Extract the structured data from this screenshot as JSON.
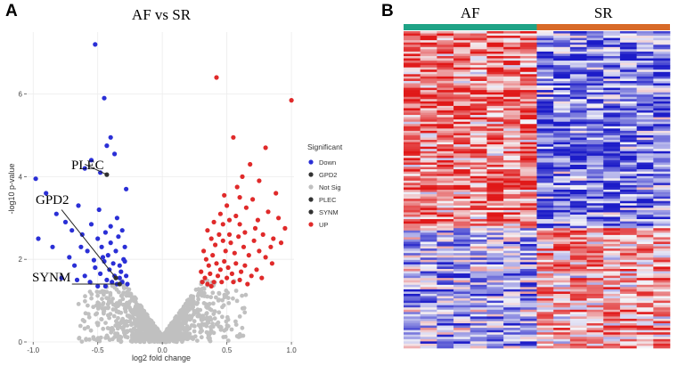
{
  "panel_a": {
    "letter": "A",
    "chart_data": {
      "type": "scatter",
      "title": "AF vs SR",
      "xlabel": "log2 fold change",
      "ylabel": "-log10 p-value",
      "xlim": [
        -1.05,
        1.02
      ],
      "ylim": [
        0,
        7.5
      ],
      "x_ticks": [
        -1.0,
        -0.5,
        0.0,
        0.5,
        1.0
      ],
      "x_tick_labels": [
        "-1.0",
        "-0.5",
        "0.0",
        "0.5",
        "1.0"
      ],
      "y_ticks": [
        0,
        2,
        4,
        6
      ],
      "y_tick_labels": [
        "0",
        "2",
        "4",
        "6"
      ],
      "grid": true,
      "legend": {
        "title": "Significant",
        "placement": "right",
        "entries": [
          {
            "label": "Down",
            "color": "#2a2fd6"
          },
          {
            "label": "GPD2",
            "color": "#333333"
          },
          {
            "label": "Not Sig",
            "color": "#c0c0c0"
          },
          {
            "label": "PLEC",
            "color": "#333333"
          },
          {
            "label": "SYNM",
            "color": "#333333"
          },
          {
            "label": "UP",
            "color": "#e02a2a"
          }
        ]
      },
      "series": [
        {
          "name": "Down",
          "color": "#2a2fd6",
          "points": [
            [
              -0.52,
              7.2
            ],
            [
              -0.45,
              5.9
            ],
            [
              -0.4,
              4.95
            ],
            [
              -0.43,
              4.75
            ],
            [
              -0.37,
              4.55
            ],
            [
              -0.55,
              4.4
            ],
            [
              -0.6,
              4.2
            ],
            [
              -0.48,
              4.1
            ],
            [
              -0.28,
              3.7
            ],
            [
              -0.98,
              3.95
            ],
            [
              -0.9,
              3.6
            ],
            [
              -0.82,
              3.1
            ],
            [
              -0.75,
              2.9
            ],
            [
              -0.65,
              3.3
            ],
            [
              -0.7,
              2.7
            ],
            [
              -0.96,
              2.5
            ],
            [
              -0.85,
              2.3
            ],
            [
              -0.72,
              2.05
            ],
            [
              -0.62,
              2.6
            ],
            [
              -0.58,
              2.2
            ],
            [
              -0.55,
              2.85
            ],
            [
              -0.5,
              2.5
            ],
            [
              -0.47,
              2.3
            ],
            [
              -0.44,
              2.65
            ],
            [
              -0.42,
              2.1
            ],
            [
              -0.4,
              2.4
            ],
            [
              -0.38,
              1.9
            ],
            [
              -0.36,
              2.2
            ],
            [
              -0.34,
              2.55
            ],
            [
              -0.32,
              1.7
            ],
            [
              -0.3,
              2.0
            ],
            [
              -0.29,
              2.3
            ],
            [
              -0.6,
              1.6
            ],
            [
              -0.52,
              1.8
            ],
            [
              -0.48,
              1.65
            ],
            [
              -0.45,
              1.95
            ],
            [
              -0.43,
              1.5
            ],
            [
              -0.41,
              1.75
            ],
            [
              -0.39,
              1.45
            ],
            [
              -0.37,
              1.6
            ],
            [
              -0.35,
              1.4
            ],
            [
              -0.33,
              1.55
            ],
            [
              -0.31,
              1.45
            ],
            [
              -0.28,
              1.6
            ],
            [
              -0.27,
              1.4
            ],
            [
              -0.66,
              1.5
            ],
            [
              -0.56,
              1.45
            ],
            [
              -0.5,
              1.35
            ],
            [
              -0.46,
              2.05
            ],
            [
              -0.4,
              2.8
            ],
            [
              -0.35,
              3.0
            ],
            [
              -0.49,
              3.2
            ],
            [
              -0.31,
              2.7
            ],
            [
              -0.68,
              1.85
            ],
            [
              -0.78,
              1.55
            ],
            [
              -0.44,
              1.35
            ],
            [
              -0.33,
              1.85
            ],
            [
              -0.29,
              1.95
            ],
            [
              -0.53,
              1.98
            ],
            [
              -0.63,
              2.3
            ]
          ]
        },
        {
          "name": "UP",
          "color": "#e02a2a",
          "points": [
            [
              0.42,
              6.4
            ],
            [
              1.0,
              5.85
            ],
            [
              0.55,
              4.95
            ],
            [
              0.8,
              4.7
            ],
            [
              0.68,
              4.3
            ],
            [
              0.62,
              4.0
            ],
            [
              0.75,
              3.9
            ],
            [
              0.58,
              3.75
            ],
            [
              0.88,
              3.6
            ],
            [
              0.7,
              3.45
            ],
            [
              0.65,
              3.25
            ],
            [
              0.82,
              3.15
            ],
            [
              0.5,
              3.3
            ],
            [
              0.45,
              3.1
            ],
            [
              0.52,
              2.95
            ],
            [
              0.6,
              2.85
            ],
            [
              0.72,
              2.75
            ],
            [
              0.78,
              2.6
            ],
            [
              0.86,
              2.5
            ],
            [
              0.92,
              2.4
            ],
            [
              0.35,
              2.7
            ],
            [
              0.38,
              2.5
            ],
            [
              0.41,
              2.35
            ],
            [
              0.44,
              2.6
            ],
            [
              0.47,
              2.45
            ],
            [
              0.49,
              2.2
            ],
            [
              0.53,
              2.4
            ],
            [
              0.56,
              2.15
            ],
            [
              0.59,
              2.55
            ],
            [
              0.63,
              2.3
            ],
            [
              0.67,
              2.1
            ],
            [
              0.71,
              2.45
            ],
            [
              0.75,
              2.2
            ],
            [
              0.8,
              2.05
            ],
            [
              0.84,
              2.3
            ],
            [
              0.32,
              2.2
            ],
            [
              0.34,
              2.0
            ],
            [
              0.36,
              1.85
            ],
            [
              0.39,
              2.1
            ],
            [
              0.42,
              1.9
            ],
            [
              0.45,
              1.75
            ],
            [
              0.48,
              1.95
            ],
            [
              0.51,
              1.8
            ],
            [
              0.54,
              1.65
            ],
            [
              0.57,
              1.9
            ],
            [
              0.61,
              1.7
            ],
            [
              0.64,
              1.85
            ],
            [
              0.69,
              1.6
            ],
            [
              0.73,
              1.75
            ],
            [
              0.77,
              1.55
            ],
            [
              0.3,
              1.7
            ],
            [
              0.33,
              1.55
            ],
            [
              0.37,
              1.65
            ],
            [
              0.4,
              1.45
            ],
            [
              0.43,
              1.6
            ],
            [
              0.46,
              1.45
            ],
            [
              0.5,
              1.55
            ],
            [
              0.55,
              1.45
            ],
            [
              0.6,
              1.5
            ],
            [
              0.66,
              1.4
            ],
            [
              0.31,
              1.45
            ],
            [
              0.35,
              1.4
            ],
            [
              0.38,
              1.35
            ],
            [
              0.95,
              2.75
            ],
            [
              0.9,
              3.0
            ],
            [
              0.6,
              3.5
            ],
            [
              0.47,
              2.85
            ],
            [
              0.52,
              2.6
            ],
            [
              0.4,
              2.9
            ],
            [
              0.85,
              1.9
            ],
            [
              0.74,
              2.95
            ],
            [
              0.64,
              2.65
            ],
            [
              0.57,
              3.05
            ],
            [
              0.48,
              3.55
            ]
          ]
        },
        {
          "name": "GPD2",
          "color": "#333333",
          "points": [
            [
              -0.36,
              1.55
            ]
          ]
        },
        {
          "name": "PLEC",
          "color": "#333333",
          "points": [
            [
              -0.43,
              4.05
            ]
          ]
        },
        {
          "name": "SYNM",
          "color": "#333333",
          "points": [
            [
              -0.33,
              1.4
            ]
          ]
        }
      ],
      "annotations": [
        {
          "label": "PLEC",
          "gene_x": -0.43,
          "gene_y": 4.05
        },
        {
          "label": "GPD2",
          "gene_x": -0.36,
          "gene_y": 1.55
        },
        {
          "label": "SYNM",
          "gene_x": -0.33,
          "gene_y": 1.4
        }
      ]
    }
  },
  "panel_b": {
    "letter": "B",
    "chart_data": {
      "type": "heatmap",
      "groups": [
        {
          "label": "AF",
          "color": "#1fa386",
          "columns": 8
        },
        {
          "label": "SR",
          "color": "#d86a28",
          "columns": 8
        }
      ],
      "color_scale": {
        "low": "#1c1cc8",
        "mid": "#f4f4f8",
        "high": "#e01818"
      },
      "rows": 140,
      "pattern": "AF columns mostly high (red) in upper rows, SR columns mostly low (blue); pattern reverses in lower rows"
    }
  }
}
